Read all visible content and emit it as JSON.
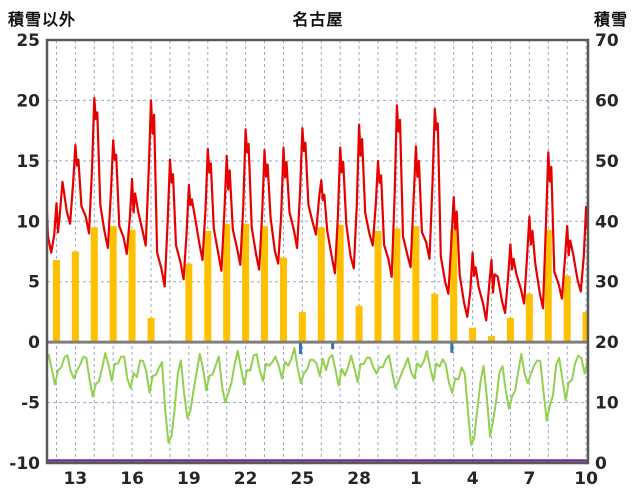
{
  "chart_data": {
    "type": "line",
    "title": "名古屋",
    "left_axis": {
      "label": "積雪以外",
      "min": -10,
      "max": 25,
      "ticks": [
        25,
        20,
        15,
        10,
        5,
        0,
        -5,
        -10
      ]
    },
    "right_axis": {
      "label": "積雪",
      "min": 0,
      "max": 70,
      "ticks": [
        70,
        60,
        50,
        40,
        30,
        20,
        10,
        0
      ]
    },
    "x_axis": {
      "tick_labels": [
        "13",
        "16",
        "19",
        "22",
        "25",
        "28",
        "1",
        "4",
        "7",
        "10"
      ],
      "tick_positions_days": [
        1.5,
        4.5,
        7.5,
        10.5,
        13.5,
        16.5,
        19.5,
        22.5,
        25.5,
        28.5
      ],
      "total_days": 28.6,
      "gridline_interval_days": 1
    },
    "series": [
      {
        "name": "temperature-line",
        "type": "line",
        "color": "#E60000",
        "axis": "left",
        "daily_max": [
          11.5,
          16.3,
          20.2,
          16.7,
          13.5,
          20.0,
          15.1,
          13.0,
          16.0,
          15.4,
          17.6,
          15.9,
          16.1,
          17.7,
          13.4,
          16.1,
          18.0,
          15.0,
          19.6,
          16.2,
          19.3,
          12.0,
          7.4,
          6.8,
          8.1,
          10.4,
          15.7,
          9.6,
          11.2
        ],
        "daily_min": [
          7.4,
          9.8,
          9.0,
          7.8,
          7.3,
          8.0,
          4.6,
          5.2,
          6.8,
          5.9,
          6.4,
          6.0,
          6.5,
          7.8,
          8.9,
          5.7,
          6.1,
          8.0,
          5.4,
          6.2,
          6.9,
          4.0,
          2.1,
          1.8,
          2.4,
          3.2,
          2.8,
          3.6,
          4.2
        ]
      },
      {
        "name": "lower-green-line",
        "type": "line",
        "color": "#92D050",
        "axis": "left",
        "daily_high": [
          -1.2,
          -0.8,
          -1.5,
          -1.0,
          -1.4,
          -1.6,
          -2.0,
          -1.8,
          -1.2,
          -1.5,
          -0.9,
          -1.1,
          -1.0,
          -0.8,
          -1.2,
          -1.3,
          -0.9,
          -1.0,
          -1.4,
          -1.1,
          -0.9,
          -1.6,
          -2.5,
          -2.2,
          -1.8,
          -1.0,
          -1.6,
          -1.3,
          -0.8
        ],
        "daily_low": [
          -3.5,
          -3.0,
          -4.5,
          -3.2,
          -3.8,
          -4.2,
          -8.3,
          -6.3,
          -4.0,
          -5.0,
          -3.5,
          -3.2,
          -3.0,
          -3.4,
          -2.8,
          -3.6,
          -3.3,
          -2.6,
          -3.8,
          -3.0,
          -3.2,
          -4.2,
          -8.5,
          -7.8,
          -5.5,
          -3.4,
          -6.5,
          -4.8,
          -2.6
        ]
      },
      {
        "name": "sunshine-bars",
        "type": "bar",
        "color": "#FFC000",
        "axis": "left",
        "daily_values": [
          6.8,
          7.5,
          9.5,
          9.6,
          9.3,
          2.0,
          0,
          6.5,
          9.2,
          9.8,
          9.8,
          9.6,
          7.0,
          2.5,
          9.5,
          9.7,
          3.0,
          9.2,
          9.4,
          9.6,
          4.0,
          9.3,
          1.2,
          0.5,
          2.0,
          4.0,
          9.3,
          5.5,
          2.5
        ]
      },
      {
        "name": "precipitation-marks",
        "type": "bar",
        "color": "#2E75B6",
        "axis": "left",
        "events": [
          {
            "day": 13.4,
            "value": 0.9
          },
          {
            "day": 15.1,
            "value": 0.5
          },
          {
            "day": 21.4,
            "value": 0.8
          }
        ]
      },
      {
        "name": "snow-depth-line",
        "type": "line",
        "color": "#7030A0",
        "axis": "right",
        "constant_value": 0
      }
    ],
    "zero_line_color": "#7F7F7F",
    "grid_color": "#9AA7C6",
    "border_color": "#595959",
    "text_color": "#262626",
    "legend_position": "none",
    "grid": "on"
  }
}
